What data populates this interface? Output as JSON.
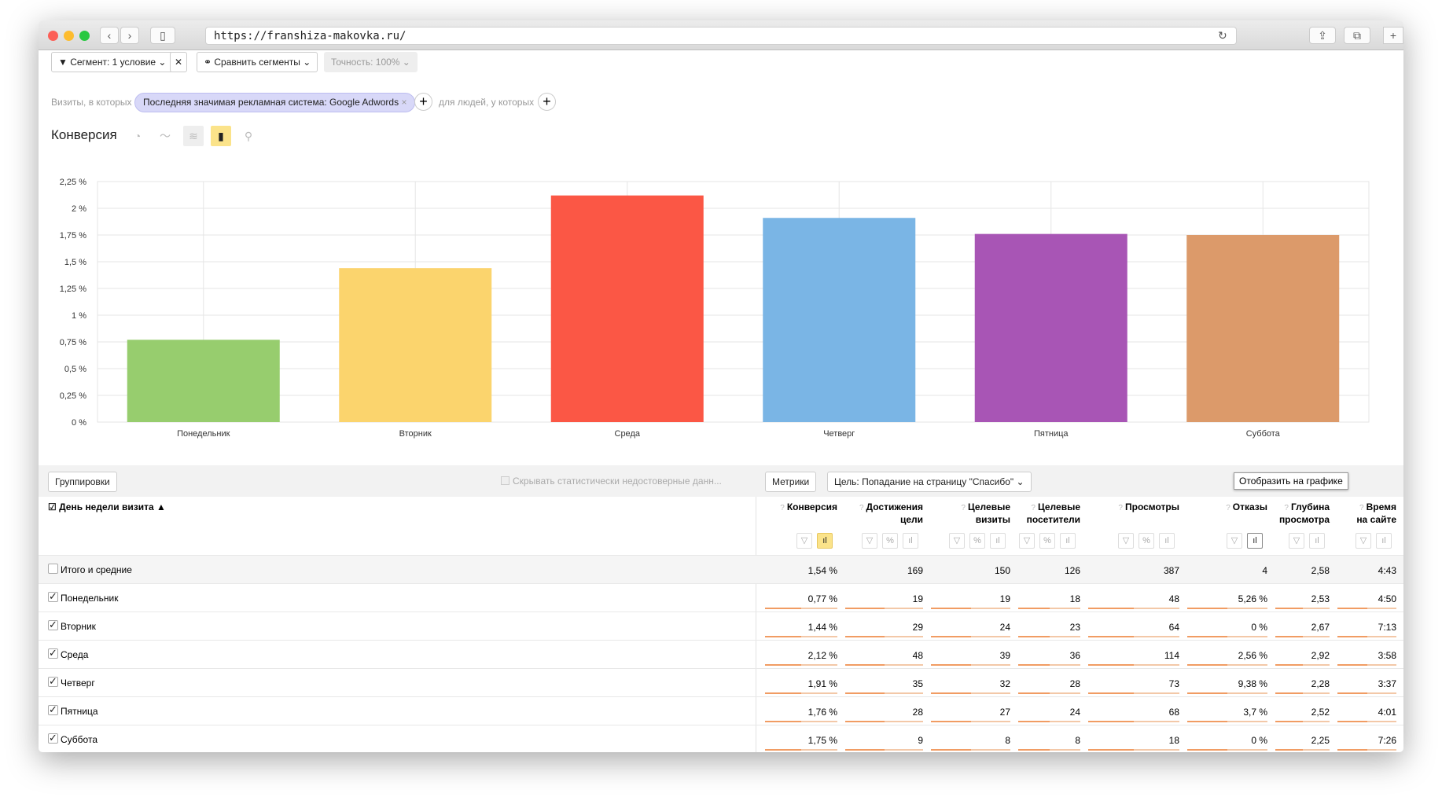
{
  "browser": {
    "url": "https://franshiza-makovka.ru/"
  },
  "toolbar": {
    "segment": "Сегмент: 1 условие",
    "compare": "Сравнить сегменты",
    "accuracy": "Точность: 100%"
  },
  "filter": {
    "prefix": "Визиты, в которых",
    "chip": "Последняя значимая рекламная система: Google Adwords",
    "people": "для людей, у которых"
  },
  "chart_title": "Конверсия",
  "chart_data": {
    "type": "bar",
    "categories": [
      "Понедельник",
      "Вторник",
      "Среда",
      "Четверг",
      "Пятница",
      "Суббота"
    ],
    "values": [
      0.77,
      1.44,
      2.12,
      1.91,
      1.76,
      1.75
    ],
    "ylim": [
      0,
      2.25
    ],
    "yticks": [
      "0 %",
      "0,25 %",
      "0,5 %",
      "0,75 %",
      "1 %",
      "1,25 %",
      "1,5 %",
      "1,75 %",
      "2 %",
      "2,25 %"
    ],
    "colors": [
      "#97cd6e",
      "#fbd46d",
      "#fb5745",
      "#7ab5e5",
      "#a855b5",
      "#dc9a6a"
    ],
    "grid": true
  },
  "table": {
    "groupings": "Группировки",
    "hide_label": "Скрывать статистически недостоверные данн...",
    "metrics": "Метрики",
    "goal": "Цель: Попадание на страницу \"Спасибо\"",
    "dim_header": "День недели визита",
    "columns": [
      "Конверсия",
      "Достижения цели",
      "Целевые визиты",
      "Целевые посетители",
      "Просмотры",
      "Отказы",
      "Глубина просмотра",
      "Время на сайте"
    ],
    "col_lines": [
      [
        "Конверсия"
      ],
      [
        "Достижения",
        "цели"
      ],
      [
        "Целевые",
        "визиты"
      ],
      [
        "Целевые",
        "посетители"
      ],
      [
        "Просмотры"
      ],
      [
        "Отказы"
      ],
      [
        "Глубина",
        "просмотра"
      ],
      [
        "Время",
        "на сайте"
      ]
    ],
    "total": {
      "label": "Итого и средние",
      "values": [
        "1,54 %",
        "169",
        "150",
        "126",
        "387",
        "4",
        "2,58",
        "4:43"
      ]
    },
    "rows": [
      {
        "label": "Понедельник",
        "values": [
          "0,77 %",
          "19",
          "19",
          "18",
          "48",
          "5,26 %",
          "2,53",
          "4:50"
        ]
      },
      {
        "label": "Вторник",
        "values": [
          "1,44 %",
          "29",
          "24",
          "23",
          "64",
          "0 %",
          "2,67",
          "7:13"
        ]
      },
      {
        "label": "Среда",
        "values": [
          "2,12 %",
          "48",
          "39",
          "36",
          "114",
          "2,56 %",
          "2,92",
          "3:58"
        ]
      },
      {
        "label": "Четверг",
        "values": [
          "1,91 %",
          "35",
          "32",
          "28",
          "73",
          "9,38 %",
          "2,28",
          "3:37"
        ]
      },
      {
        "label": "Пятница",
        "values": [
          "1,76 %",
          "28",
          "27",
          "24",
          "68",
          "3,7 %",
          "2,52",
          "4:01"
        ]
      },
      {
        "label": "Суббота",
        "values": [
          "1,75 %",
          "9",
          "8",
          "8",
          "18",
          "0 %",
          "2,25",
          "7:26"
        ]
      }
    ],
    "tooltip": "Отобразить на графике"
  }
}
